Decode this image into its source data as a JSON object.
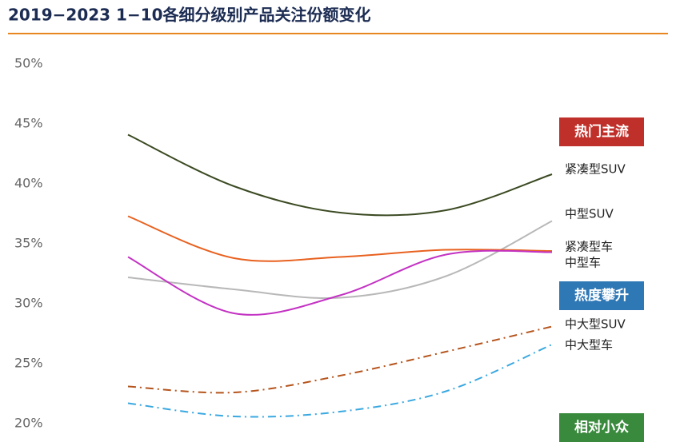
{
  "chart_data": {
    "type": "line",
    "title": "2019−2023 1−10各细分级别产品关注份额变化",
    "categories": [
      null,
      null,
      null,
      null,
      null
    ],
    "series": [
      {
        "name": "紧凑型SUV",
        "color": "#3b4a22",
        "dash": "solid",
        "values": [
          44.1,
          39.8,
          37.6,
          37.8,
          40.8
        ]
      },
      {
        "name": "中型SUV",
        "color": "#b8b8b8",
        "dash": "solid",
        "values": [
          32.2,
          31.2,
          30.5,
          32.3,
          36.9
        ]
      },
      {
        "name": "紧凑型车",
        "color": "#e8611f",
        "dash": "solid",
        "values": [
          37.3,
          33.8,
          33.9,
          34.5,
          34.4
        ]
      },
      {
        "name": "中型车",
        "color": "#c332c3",
        "dash": "solid",
        "values": [
          33.9,
          29.2,
          30.7,
          34.1,
          34.3
        ]
      },
      {
        "name": "中大型SUV",
        "color": "#b5541c",
        "dash": "dashdot",
        "values": [
          23.1,
          22.6,
          24.0,
          26.0,
          28.1
        ]
      },
      {
        "name": "中大型车",
        "color": "#3aa8e0",
        "dash": "dashdot",
        "values": [
          21.7,
          20.6,
          21.0,
          22.7,
          26.6
        ]
      }
    ],
    "ylim": [
      18.2,
      50
    ],
    "yticks": [
      {
        "value": 20,
        "label": "20%"
      },
      {
        "value": 25,
        "label": "25%"
      },
      {
        "value": 30,
        "label": "30%"
      },
      {
        "value": 35,
        "label": "35%"
      },
      {
        "value": 40,
        "label": "40%"
      },
      {
        "value": 45,
        "label": "45%"
      },
      {
        "value": 50,
        "label": "50%"
      }
    ],
    "grid": false,
    "annotations": [
      {
        "text": "热门主流",
        "color": "#c0302a"
      },
      {
        "text": "热度攀升",
        "color": "#2f78b6"
      },
      {
        "text": "相对小众",
        "color": "#3a8a3e"
      }
    ]
  }
}
